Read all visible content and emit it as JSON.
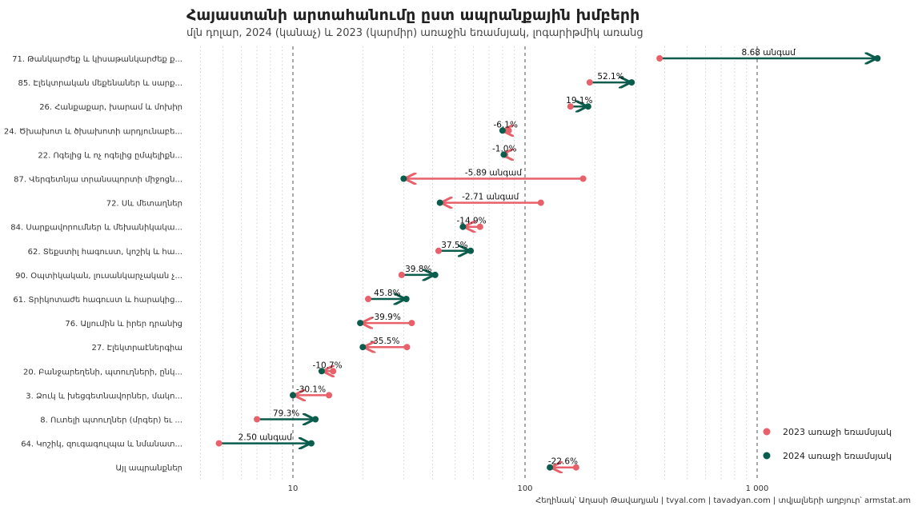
{
  "chart_data": {
    "type": "dumbbell",
    "title": "Հայաստանի արտահանումը ըստ ապրանքային խմբերի",
    "subtitle": "մլն դոլար, 2024 (կանաչ) և 2023 (կարմիր) առաջին եռամսյակ, լոգարիթմիկ առանց",
    "x_scale": "log10",
    "xlim": [
      4,
      1350
    ],
    "x_ticks": [
      10,
      100,
      1000
    ],
    "x_tick_labels": [
      "10",
      "100",
      "1 000"
    ],
    "colors": {
      "y2023": "#e8606a",
      "y2024": "#0a5c4c"
    },
    "legend": {
      "position": "bottom-right",
      "entries": [
        {
          "label": "2023 առաջի եռամսյակ",
          "color": "#e8606a"
        },
        {
          "label": "2024 առաջի եռամսյակ",
          "color": "#0a5c4c"
        }
      ]
    },
    "rows": [
      {
        "category": "71. Թանկարժեք և կիսաթանկարժեք ք...",
        "y2023": 380,
        "y2024": 3300,
        "label": "8.68 անգամ"
      },
      {
        "category": "85. Էլեկտրական մեքենաներ և սարք...",
        "y2023": 190,
        "y2024": 288,
        "label": "52.1%"
      },
      {
        "category": "26. Հանքաքար, խարամ և մոխիր",
        "y2023": 157,
        "y2024": 187,
        "label": "19.1%"
      },
      {
        "category": "24. Ծխախոտ և ծխախոտի արդյունաբե...",
        "y2023": 85,
        "y2024": 80,
        "label": "-6.1%"
      },
      {
        "category": "22. Ոգելից և ոչ ոգելից ըմպելիքն...",
        "y2023": 82,
        "y2024": 81,
        "label": "-1.0%"
      },
      {
        "category": "87. Վերգետնյա տրանսպորտի միջոցն...",
        "y2023": 178,
        "y2024": 30,
        "label": "-5.89 անգամ"
      },
      {
        "category": "72. Սև մետաղներ",
        "y2023": 117,
        "y2024": 43,
        "label": "-2.71 անգամ"
      },
      {
        "category": "84. Սարքավորումներ և մեխանիկակա...",
        "y2023": 64,
        "y2024": 54,
        "label": "-14.9%"
      },
      {
        "category": "62. Տեքստիլ հագուստ, կոշիկ և հա...",
        "y2023": 42.4,
        "y2024": 58.3,
        "label": "37.5%"
      },
      {
        "category": "90. Օպտիկական, լուսանկարչական չ...",
        "y2023": 29.4,
        "y2024": 41,
        "label": "39.8%"
      },
      {
        "category": "61. Տրիկոտաժե հագուստ և հարակից...",
        "y2023": 21.1,
        "y2024": 30.8,
        "label": "45.8%"
      },
      {
        "category": "76. Ալյումին և իրեր դրանից",
        "y2023": 32.5,
        "y2024": 19.5,
        "label": "-39.9%"
      },
      {
        "category": "27. Էլեկտրաէներգիա",
        "y2023": 31,
        "y2024": 20,
        "label": "-35.5%"
      },
      {
        "category": "20. Բանջարեղենի, պտուղների, ընկ...",
        "y2023": 14.9,
        "y2024": 13.3,
        "label": "-10.7%"
      },
      {
        "category": "3. Ձուկ և խեցգետնավորներ, մակո...",
        "y2023": 14.3,
        "y2024": 10,
        "label": "-30.1%"
      },
      {
        "category": "8. Ուտելի պտուղներ (մրգեր) եւ ...",
        "y2023": 7,
        "y2024": 12.5,
        "label": "79.3%"
      },
      {
        "category": "64. Կոշիկ, զուգագուլպա և նմանատ...",
        "y2023": 4.8,
        "y2024": 12,
        "label": "2.50 անգամ"
      },
      {
        "category": "Այլ ապրանքներ",
        "y2023": 166,
        "y2024": 128,
        "label": "-22.6%"
      }
    ]
  },
  "caption": "Հեղինակ՝ Աղասի Թավադյան   |   tvyal.com   |   tavadyan.com   |   տվյալների աղբյուր՝ armstat.am"
}
